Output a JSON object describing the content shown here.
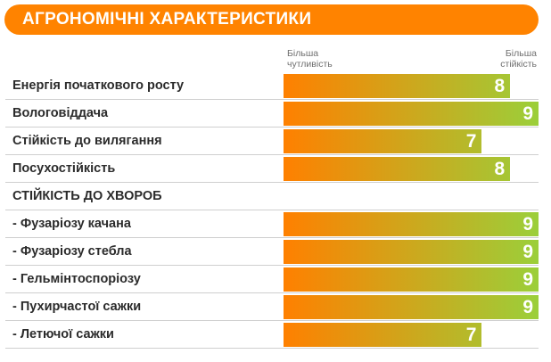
{
  "header": {
    "title": "АГРОНОМІЧНІ ХАРАКТЕРИСТИКИ"
  },
  "legend": {
    "left_line1": "Більша",
    "left_line2": "чутливість",
    "right_line1": "Більша",
    "right_line2": "стійкість"
  },
  "colors": {
    "banner": "#ff8300",
    "bar_start": "#ff8000",
    "bar_end": "#9bcf3a"
  },
  "chart_data": {
    "type": "bar",
    "orientation": "horizontal",
    "title": "АГРОНОМІЧНІ ХАРАКТЕРИСТИКИ",
    "xlim": [
      0,
      9
    ],
    "rows": [
      {
        "label": "Енергія початкового росту",
        "value": 8
      },
      {
        "label": "Вологовіддача",
        "value": 9
      },
      {
        "label": "Стійкість до вилягання",
        "value": 7
      },
      {
        "label": "Посухостійкість",
        "value": 8
      },
      {
        "label": "СТІЙКІСТЬ ДО ХВОРОБ",
        "value": null,
        "section": true
      },
      {
        "label": "- Фузаріозу качана",
        "value": 9
      },
      {
        "label": "- Фузаріозу стебла",
        "value": 9
      },
      {
        "label": "- Гельмінтоспоріозу",
        "value": 9
      },
      {
        "label": "- Пухирчастої сажки",
        "value": 9
      },
      {
        "label": "- Летючої сажки",
        "value": 7
      }
    ]
  }
}
